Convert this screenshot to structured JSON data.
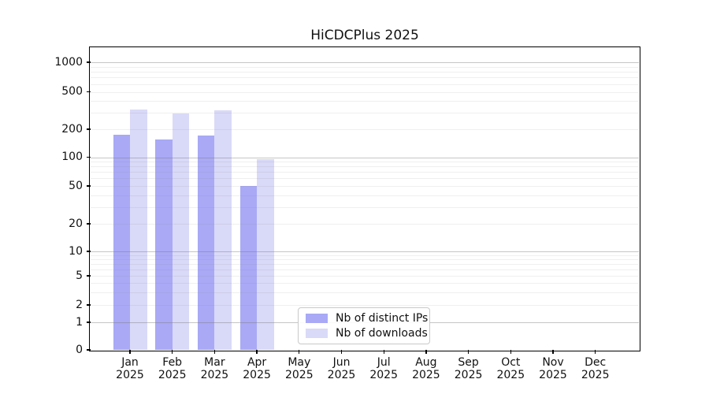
{
  "chart_data": {
    "type": "bar",
    "title": "HiCDCPlus 2025",
    "categories": [
      "Jan 2025",
      "Feb 2025",
      "Mar 2025",
      "Apr 2025",
      "May 2025",
      "Jun 2025",
      "Jul 2025",
      "Aug 2025",
      "Sep 2025",
      "Oct 2025",
      "Nov 2025",
      "Dec 2025"
    ],
    "series": [
      {
        "name": "Nb of distinct IPs",
        "color": "#a9a9f6",
        "values": [
          175,
          156,
          170,
          50,
          0,
          0,
          0,
          0,
          0,
          0,
          0,
          0
        ]
      },
      {
        "name": "Nb of downloads",
        "color": "#d9d9f8",
        "values": [
          325,
          293,
          316,
          95,
          0,
          0,
          0,
          0,
          0,
          0,
          0,
          0
        ]
      }
    ],
    "xlabel": "",
    "ylabel": "",
    "yscale": "log",
    "yticks": [
      0,
      1,
      2,
      5,
      10,
      20,
      50,
      100,
      200,
      500,
      1000
    ],
    "ylim": [
      0,
      1300
    ],
    "grid": true,
    "legend_position": "inside lower center-left"
  },
  "colors": {
    "axis": "#000000",
    "grid_major": "#bcbcbc",
    "grid_minor": "#e8e8e8",
    "background": "#ffffff"
  }
}
